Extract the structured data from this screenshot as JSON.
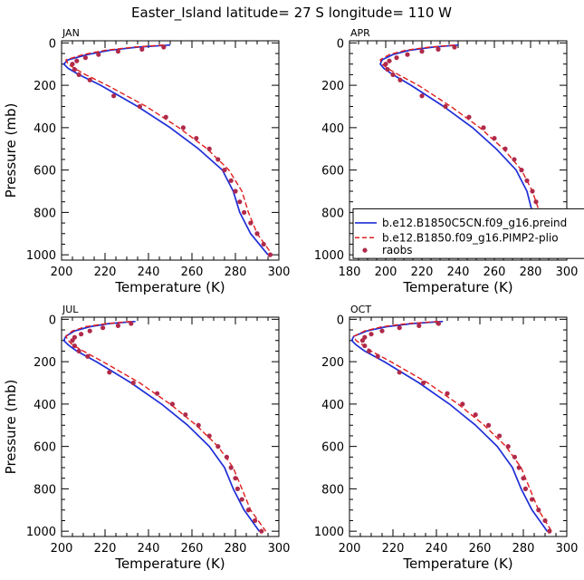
{
  "title": "Easter_Island   latitude= 27 S longitude= 110 W",
  "colors": {
    "model1": "#1f2fd6",
    "model2": "#e01f1f",
    "obs": "#b02a4a"
  },
  "legend": {
    "series1": "b.e12.B1850C5CN.f09_g16.preind",
    "series2": "b.e12.B1850.f09_g16.PIMP2-plio",
    "series3": "raobs"
  },
  "chart_data": [
    {
      "type": "line",
      "panel": "JAN",
      "xlabel": "Temperature (K)",
      "ylabel": "Pressure (mb)",
      "xlim": [
        200,
        300
      ],
      "ylim": [
        1025,
        -10
      ],
      "xticks": [
        200,
        220,
        240,
        260,
        280,
        300
      ],
      "yticks": [
        0,
        200,
        400,
        600,
        800,
        1000
      ],
      "series": [
        {
          "name": "b.e12.B1850C5CN.f09_g16.preind",
          "style": "solid",
          "points": [
            [
              250,
              10
            ],
            [
              235,
              20
            ],
            [
              222,
              35
            ],
            [
              212,
              55
            ],
            [
              203,
              80
            ],
            [
              201,
              100
            ],
            [
              203,
              120
            ],
            [
              208,
              150
            ],
            [
              218,
              200
            ],
            [
              235,
              300
            ],
            [
              250,
              400
            ],
            [
              263,
              500
            ],
            [
              274,
              600
            ],
            [
              279,
              700
            ],
            [
              282,
              800
            ],
            [
              287,
              900
            ],
            [
              295,
              1000
            ]
          ]
        },
        {
          "name": "b.e12.B1850.f09_g16.PIMP2-plio",
          "style": "dashed",
          "points": [
            [
              247,
              10
            ],
            [
              233,
              20
            ],
            [
              220,
              35
            ],
            [
              210,
              55
            ],
            [
              202,
              80
            ],
            [
              203,
              100
            ],
            [
              206,
              120
            ],
            [
              211,
              150
            ],
            [
              221,
              200
            ],
            [
              239,
              300
            ],
            [
              254,
              400
            ],
            [
              267,
              500
            ],
            [
              277,
              600
            ],
            [
              283,
              700
            ],
            [
              286,
              800
            ],
            [
              290,
              900
            ],
            [
              297,
              1000
            ]
          ]
        },
        {
          "name": "raobs",
          "style": "dots",
          "points": [
            [
              247,
              20
            ],
            [
              237,
              30
            ],
            [
              226,
              40
            ],
            [
              217,
              55
            ],
            [
              211,
              70
            ],
            [
              207,
              85
            ],
            [
              205,
              100
            ],
            [
              206,
              125
            ],
            [
              208,
              150
            ],
            [
              213,
              175
            ],
            [
              224,
              250
            ],
            [
              236,
              300
            ],
            [
              248,
              350
            ],
            [
              256,
              400
            ],
            [
              262,
              450
            ],
            [
              268,
              500
            ],
            [
              272,
              550
            ],
            [
              275,
              600
            ],
            [
              278,
              650
            ],
            [
              280,
              700
            ],
            [
              282,
              750
            ],
            [
              284,
              800
            ],
            [
              287,
              850
            ],
            [
              290,
              900
            ],
            [
              293,
              950
            ],
            [
              296,
              1000
            ]
          ]
        }
      ]
    },
    {
      "type": "line",
      "panel": "APR",
      "xlabel": "Temperature (K)",
      "ylabel": "",
      "xlim": [
        180,
        300
      ],
      "ylim": [
        1025,
        -10
      ],
      "xticks": [
        180,
        200,
        220,
        240,
        260,
        280,
        300
      ],
      "yticks": [
        0,
        200,
        400,
        600,
        800,
        1000
      ],
      "series": [
        {
          "name": "b.e12.B1850C5CN.f09_g16.preind",
          "style": "solid",
          "points": [
            [
              240,
              10
            ],
            [
              226,
              20
            ],
            [
              213,
              35
            ],
            [
              204,
              55
            ],
            [
              198,
              80
            ],
            [
              197,
              100
            ],
            [
              199,
              120
            ],
            [
              204,
              150
            ],
            [
              214,
              200
            ],
            [
              232,
              300
            ],
            [
              248,
              400
            ],
            [
              261,
              500
            ],
            [
              272,
              600
            ],
            [
              278,
              700
            ],
            [
              281,
              800
            ],
            [
              285,
              900
            ],
            [
              293,
              1000
            ]
          ]
        },
        {
          "name": "b.e12.B1850.f09_g16.PIMP2-plio",
          "style": "dashed",
          "points": [
            [
              238,
              10
            ],
            [
              224,
              20
            ],
            [
              211,
              35
            ],
            [
              202,
              55
            ],
            [
              197,
              80
            ],
            [
              198,
              100
            ],
            [
              201,
              120
            ],
            [
              207,
              150
            ],
            [
              218,
              200
            ],
            [
              236,
              300
            ],
            [
              252,
              400
            ],
            [
              265,
              500
            ],
            [
              275,
              600
            ],
            [
              281,
              700
            ],
            [
              285,
              800
            ],
            [
              289,
              900
            ],
            [
              296,
              1000
            ]
          ]
        },
        {
          "name": "raobs",
          "style": "dots",
          "points": [
            [
              238,
              20
            ],
            [
              229,
              30
            ],
            [
              220,
              40
            ],
            [
              212,
              55
            ],
            [
              206,
              70
            ],
            [
              202,
              85
            ],
            [
              200,
              100
            ],
            [
              201,
              125
            ],
            [
              204,
              150
            ],
            [
              208,
              175
            ],
            [
              220,
              250
            ],
            [
              233,
              300
            ],
            [
              246,
              350
            ],
            [
              254,
              400
            ],
            [
              260,
              450
            ],
            [
              266,
              500
            ],
            [
              271,
              550
            ],
            [
              275,
              600
            ],
            [
              278,
              650
            ],
            [
              281,
              700
            ],
            [
              283,
              750
            ],
            [
              285,
              800
            ],
            [
              287,
              850
            ],
            [
              290,
              900
            ],
            [
              293,
              950
            ],
            [
              296,
              1000
            ]
          ]
        }
      ]
    },
    {
      "type": "line",
      "panel": "JUL",
      "xlabel": "Temperature (K)",
      "ylabel": "Pressure (mb)",
      "xlim": [
        200,
        300
      ],
      "ylim": [
        1025,
        -10
      ],
      "xticks": [
        200,
        220,
        240,
        260,
        280,
        300
      ],
      "yticks": [
        0,
        200,
        400,
        600,
        800,
        1000
      ],
      "series": [
        {
          "name": "b.e12.B1850C5CN.f09_g16.preind",
          "style": "solid",
          "points": [
            [
              234,
              10
            ],
            [
              222,
              20
            ],
            [
              213,
              35
            ],
            [
              206,
              55
            ],
            [
              202,
              80
            ],
            [
              201,
              100
            ],
            [
              203,
              120
            ],
            [
              207,
              150
            ],
            [
              216,
              200
            ],
            [
              232,
              300
            ],
            [
              246,
              400
            ],
            [
              258,
              500
            ],
            [
              268,
              600
            ],
            [
              275,
              700
            ],
            [
              279,
              800
            ],
            [
              284,
              900
            ],
            [
              291,
              1000
            ]
          ]
        },
        {
          "name": "b.e12.B1850.f09_g16.PIMP2-plio",
          "style": "dashed",
          "points": [
            [
              232,
              10
            ],
            [
              221,
              20
            ],
            [
              211,
              35
            ],
            [
              205,
              55
            ],
            [
              202,
              80
            ],
            [
              203,
              100
            ],
            [
              205,
              120
            ],
            [
              210,
              150
            ],
            [
              219,
              200
            ],
            [
              236,
              300
            ],
            [
              250,
              400
            ],
            [
              262,
              500
            ],
            [
              272,
              600
            ],
            [
              279,
              700
            ],
            [
              283,
              800
            ],
            [
              287,
              900
            ],
            [
              294,
              1000
            ]
          ]
        },
        {
          "name": "raobs",
          "style": "dots",
          "points": [
            [
              232,
              20
            ],
            [
              226,
              30
            ],
            [
              219,
              40
            ],
            [
              213,
              55
            ],
            [
              209,
              70
            ],
            [
              206,
              85
            ],
            [
              205,
              100
            ],
            [
              206,
              125
            ],
            [
              208,
              150
            ],
            [
              212,
              175
            ],
            [
              222,
              250
            ],
            [
              233,
              300
            ],
            [
              244,
              350
            ],
            [
              251,
              400
            ],
            [
              257,
              450
            ],
            [
              263,
              500
            ],
            [
              268,
              550
            ],
            [
              272,
              600
            ],
            [
              276,
              650
            ],
            [
              278,
              700
            ],
            [
              280,
              750
            ],
            [
              281,
              800
            ],
            [
              283,
              850
            ],
            [
              286,
              900
            ],
            [
              289,
              950
            ],
            [
              292,
              1000
            ]
          ]
        }
      ]
    },
    {
      "type": "line",
      "panel": "OCT",
      "xlabel": "Temperature (K)",
      "ylabel": "",
      "xlim": [
        200,
        300
      ],
      "ylim": [
        1025,
        -10
      ],
      "xticks": [
        200,
        220,
        240,
        260,
        280,
        300
      ],
      "yticks": [
        0,
        200,
        400,
        600,
        800,
        1000
      ],
      "series": [
        {
          "name": "b.e12.B1850C5CN.f09_g16.preind",
          "style": "solid",
          "points": [
            [
              243,
              10
            ],
            [
              229,
              20
            ],
            [
              217,
              35
            ],
            [
              208,
              55
            ],
            [
              202,
              80
            ],
            [
              201,
              100
            ],
            [
              203,
              120
            ],
            [
              207,
              150
            ],
            [
              216,
              200
            ],
            [
              232,
              300
            ],
            [
              246,
              400
            ],
            [
              258,
              500
            ],
            [
              268,
              600
            ],
            [
              275,
              700
            ],
            [
              279,
              800
            ],
            [
              284,
              900
            ],
            [
              291,
              1000
            ]
          ]
        },
        {
          "name": "b.e12.B1850.f09_g16.PIMP2-plio",
          "style": "dashed",
          "points": [
            [
              241,
              10
            ],
            [
              227,
              20
            ],
            [
              215,
              35
            ],
            [
              207,
              55
            ],
            [
              202,
              80
            ],
            [
              203,
              100
            ],
            [
              206,
              120
            ],
            [
              210,
              150
            ],
            [
              219,
              200
            ],
            [
              236,
              300
            ],
            [
              250,
              400
            ],
            [
              262,
              500
            ],
            [
              272,
              600
            ],
            [
              279,
              700
            ],
            [
              283,
              800
            ],
            [
              287,
              900
            ],
            [
              293,
              1000
            ]
          ]
        },
        {
          "name": "raobs",
          "style": "dots",
          "points": [
            [
              241,
              20
            ],
            [
              232,
              30
            ],
            [
              223,
              40
            ],
            [
              215,
              55
            ],
            [
              210,
              70
            ],
            [
              207,
              85
            ],
            [
              206,
              100
            ],
            [
              207,
              125
            ],
            [
              209,
              150
            ],
            [
              213,
              175
            ],
            [
              223,
              250
            ],
            [
              234,
              300
            ],
            [
              245,
              350
            ],
            [
              252,
              400
            ],
            [
              258,
              450
            ],
            [
              264,
              500
            ],
            [
              269,
              550
            ],
            [
              273,
              600
            ],
            [
              276,
              650
            ],
            [
              278,
              700
            ],
            [
              280,
              750
            ],
            [
              281,
              800
            ],
            [
              284,
              850
            ],
            [
              287,
              900
            ],
            [
              290,
              950
            ],
            [
              292,
              1000
            ]
          ]
        }
      ]
    }
  ]
}
